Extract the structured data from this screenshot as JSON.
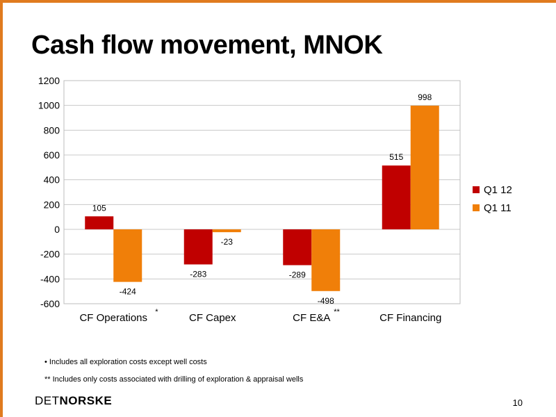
{
  "slide": {
    "title": "Cash flow movement, MNOK",
    "footnotes": [
      "• Includes all exploration costs except well costs",
      "** Includes only costs associated with drilling of exploration & appraisal wells"
    ],
    "logo": {
      "part1": "DET",
      "part2": "NORSKE"
    },
    "page_number": "10"
  },
  "chart_data": {
    "type": "bar",
    "title": "",
    "xlabel": "",
    "ylabel": "",
    "categories": [
      "CF Operations",
      "CF Capex",
      "CF E&A",
      "CF Financing"
    ],
    "category_markers": [
      "*",
      "",
      "**",
      ""
    ],
    "series": [
      {
        "name": "Q1 12",
        "color": "#c00000",
        "values": [
          105,
          -283,
          -289,
          515
        ]
      },
      {
        "name": "Q1 11",
        "color": "#f07f09",
        "values": [
          -424,
          -23,
          -498,
          998
        ]
      }
    ],
    "ylim": [
      -600,
      1200
    ],
    "yticks": [
      1200,
      1000,
      800,
      600,
      400,
      200,
      0,
      -200,
      -400,
      -600
    ],
    "grid": true,
    "legend": "right",
    "data_labels": true
  }
}
